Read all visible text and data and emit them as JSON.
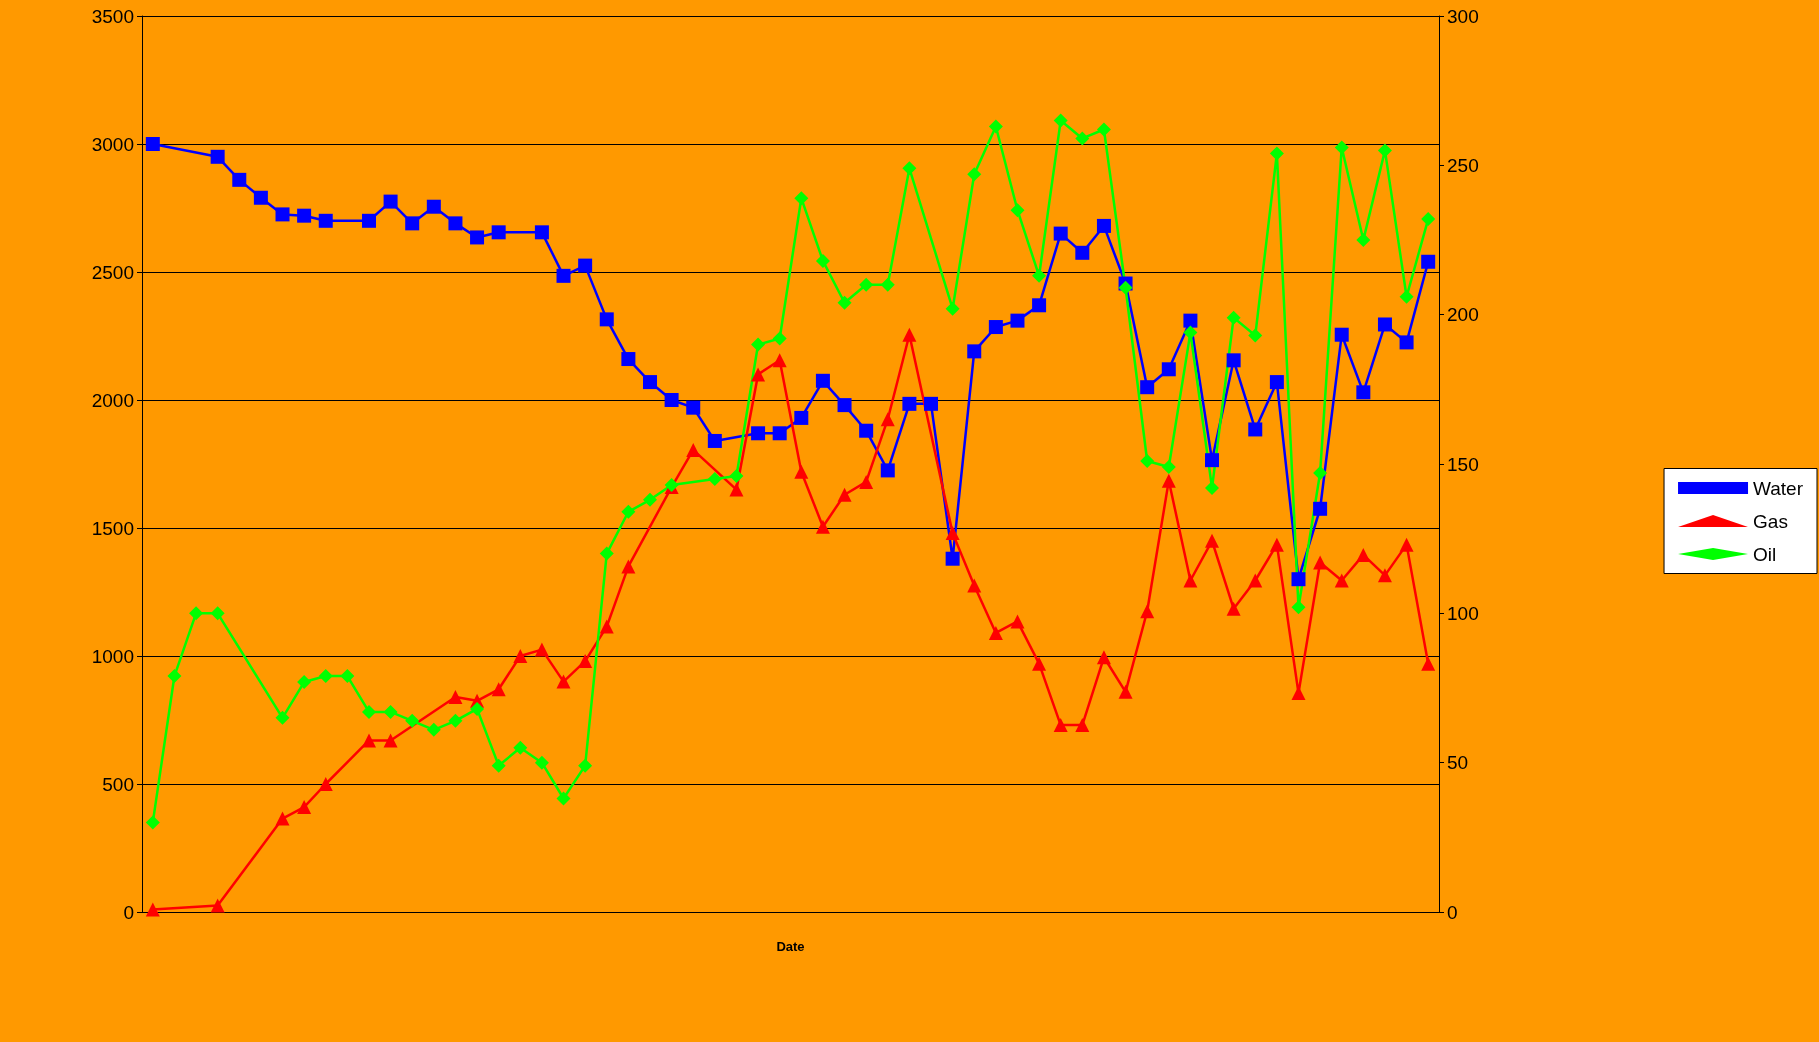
{
  "chart_data": {
    "type": "line",
    "xlabel": "Date",
    "categories": [
      null,
      null,
      null,
      null,
      null,
      null,
      null,
      null,
      null,
      null,
      null,
      null,
      null,
      null,
      null,
      null,
      null,
      null,
      null,
      null,
      null,
      null,
      null,
      null,
      null,
      null,
      null,
      null,
      null,
      null,
      null,
      null,
      null,
      null,
      null,
      null,
      null,
      null,
      null,
      null,
      null,
      null,
      null,
      null,
      null,
      null,
      null,
      null,
      null,
      null,
      null,
      null,
      null,
      null,
      null,
      null,
      null,
      null,
      null,
      null
    ],
    "ylim": [
      0,
      3500
    ],
    "yticks": [
      0,
      500,
      1000,
      1500,
      2000,
      2500,
      3000,
      3500
    ],
    "y2lim": [
      0,
      300
    ],
    "y2ticks": [
      0,
      50,
      100,
      150,
      200,
      250,
      300
    ],
    "grid": "y",
    "legend": "right",
    "line_style": "solid",
    "series": [
      {
        "name": "Water",
        "color": "#0000ff",
        "marker": "square",
        "values": [
          3000,
          null,
          null,
          2950,
          2860,
          2790,
          2725,
          2720,
          2700,
          null,
          2700,
          2775,
          2690,
          2755,
          2690,
          2635,
          2655,
          null,
          2655,
          2485,
          2525,
          2315,
          2160,
          2070,
          2000,
          1970,
          1840,
          null,
          1870,
          1870,
          1930,
          2075,
          1980,
          1880,
          1725,
          1985,
          1985,
          1380,
          2190,
          2285,
          2310,
          2370,
          2650,
          2575,
          2680,
          2455,
          2050,
          2120,
          2310,
          1765,
          2155,
          1885,
          2070,
          1300,
          1575,
          2255,
          2030,
          2295,
          2225,
          2540
        ]
      },
      {
        "name": "Gas",
        "color": "#ff0000",
        "marker": "triangle",
        "values": [
          10,
          null,
          null,
          25,
          null,
          null,
          365,
          410,
          500,
          null,
          670,
          670,
          null,
          null,
          840,
          825,
          870,
          1000,
          1025,
          900,
          980,
          1115,
          1350,
          null,
          1660,
          1805,
          null,
          1650,
          2100,
          2155,
          1720,
          1505,
          1630,
          1680,
          1925,
          2255,
          null,
          1480,
          1275,
          1090,
          1135,
          970,
          730,
          730,
          995,
          860,
          1175,
          1685,
          1295,
          1450,
          1185,
          1295,
          1435,
          855,
          1365,
          1295,
          1395,
          1315,
          1435,
          970
        ]
      },
      {
        "name": "Oil",
        "color": "#00ff00",
        "marker": "diamond",
        "axis": "y2",
        "values": [
          30,
          79,
          100,
          100,
          null,
          null,
          65,
          77,
          79,
          79,
          67,
          67,
          64,
          61,
          64,
          68,
          49,
          55,
          50,
          38,
          49,
          120,
          134,
          138,
          143,
          null,
          145,
          146,
          190,
          192,
          239,
          218,
          204,
          210,
          210,
          249,
          null,
          202,
          247,
          263,
          235,
          213,
          265,
          259,
          262,
          209,
          151,
          149,
          194,
          142,
          199,
          193,
          254,
          102,
          147,
          256,
          225,
          255,
          206,
          232
        ]
      }
    ]
  }
}
